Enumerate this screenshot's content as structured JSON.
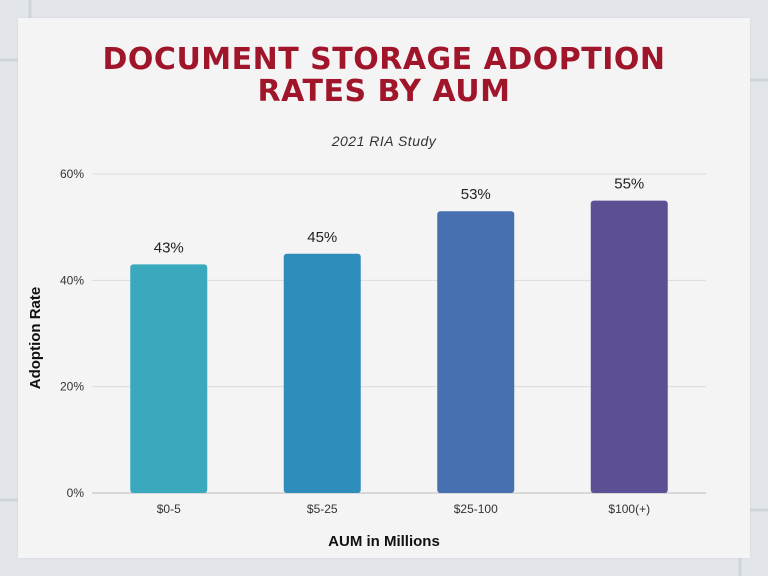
{
  "chart_data": {
    "type": "bar",
    "title": "DOCUMENT STORAGE ADOPTION RATES BY AUM",
    "title_lines": [
      "DOCUMENT STORAGE ADOPTION",
      "RATES BY AUM"
    ],
    "subtitle": "2021 RIA Study",
    "xlabel": "AUM in Millions",
    "ylabel": "Adoption Rate",
    "categories": [
      "$0-5",
      "$5-25",
      "$25-100",
      "$100(+)"
    ],
    "values": [
      43,
      45,
      53,
      55
    ],
    "value_labels": [
      "43%",
      "45%",
      "53%",
      "55%"
    ],
    "ylim": [
      0,
      60
    ],
    "yticks": [
      0,
      20,
      40,
      60
    ],
    "ytick_labels": [
      "0%",
      "20%",
      "40%",
      "60%"
    ],
    "grid": true,
    "colors": [
      "#3ba9bd",
      "#2f8dbc",
      "#4670b0",
      "#5d4f93"
    ]
  },
  "theme": {
    "title_color": "#a0152a",
    "background": "#f4f4f4"
  }
}
